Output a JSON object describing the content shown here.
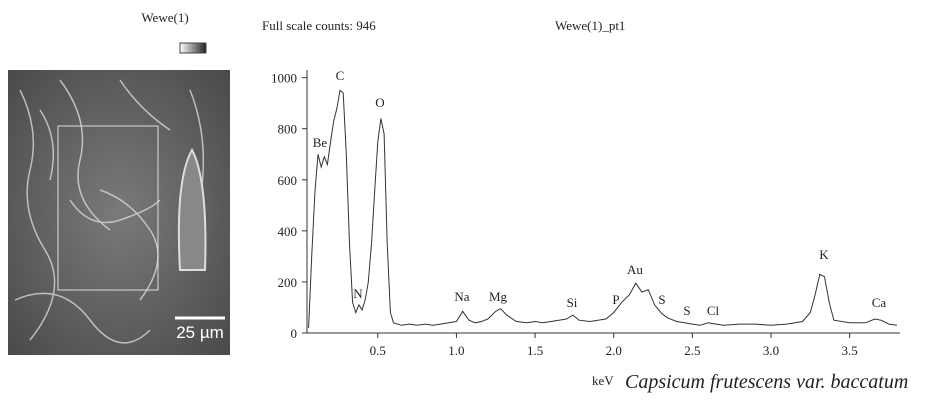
{
  "panel": {
    "title": "Wewe(1)",
    "scale_bar": "25 µm"
  },
  "chart_data": {
    "type": "line",
    "header": "Full scale counts: 946",
    "title": "Wewe(1)_pt1",
    "x_label": "keV",
    "caption": "Capsicum frutescens var. baccatum",
    "annotations": [
      "Be",
      "C",
      "O",
      "N",
      "Na",
      "Mg",
      "Si",
      "P",
      "Au",
      "S",
      "S",
      "Cl",
      "K",
      "Ca"
    ],
    "xlim": [
      0.05,
      3.82
    ],
    "ylim": [
      0,
      1030
    ],
    "xticks": [
      0.5,
      {
        "value": 1,
        "label": "1.0"
      },
      1.5,
      {
        "value": 2,
        "label": "2.0"
      },
      2.5,
      {
        "value": 3,
        "label": "3.0"
      },
      3.5
    ],
    "yticks": [
      0,
      200,
      400,
      600,
      800,
      1000
    ],
    "x": [
      0.06,
      0.08,
      0.1,
      0.12,
      0.14,
      0.16,
      0.18,
      0.2,
      0.22,
      0.24,
      0.26,
      0.28,
      0.3,
      0.32,
      0.34,
      0.36,
      0.38,
      0.4,
      0.42,
      0.44,
      0.46,
      0.48,
      0.5,
      0.52,
      0.54,
      0.56,
      0.58,
      0.6,
      0.65,
      0.7,
      0.75,
      0.8,
      0.85,
      0.9,
      0.95,
      1.0,
      1.04,
      1.08,
      1.12,
      1.16,
      1.2,
      1.25,
      1.28,
      1.32,
      1.38,
      1.45,
      1.5,
      1.55,
      1.6,
      1.65,
      1.7,
      1.74,
      1.78,
      1.85,
      1.9,
      1.95,
      2.0,
      2.05,
      2.1,
      2.14,
      2.18,
      2.22,
      2.26,
      2.3,
      2.34,
      2.4,
      2.45,
      2.5,
      2.55,
      2.6,
      2.65,
      2.7,
      2.8,
      2.9,
      3.0,
      3.1,
      3.2,
      3.25,
      3.28,
      3.31,
      3.34,
      3.37,
      3.4,
      3.5,
      3.6,
      3.66,
      3.7,
      3.75,
      3.8
    ],
    "series": [
      {
        "color": "#333333",
        "values": [
          20,
          300,
          550,
          700,
          650,
          690,
          660,
          750,
          830,
          880,
          950,
          940,
          700,
          350,
          120,
          80,
          110,
          90,
          130,
          200,
          350,
          550,
          750,
          840,
          780,
          350,
          80,
          40,
          30,
          35,
          30,
          35,
          30,
          35,
          40,
          45,
          85,
          50,
          40,
          45,
          55,
          85,
          95,
          70,
          45,
          40,
          45,
          40,
          45,
          50,
          55,
          70,
          50,
          45,
          50,
          55,
          80,
          120,
          150,
          195,
          160,
          170,
          110,
          80,
          60,
          45,
          40,
          35,
          30,
          40,
          35,
          30,
          35,
          35,
          30,
          35,
          45,
          80,
          150,
          230,
          220,
          120,
          50,
          40,
          40,
          55,
          50,
          35,
          30
        ]
      }
    ]
  }
}
